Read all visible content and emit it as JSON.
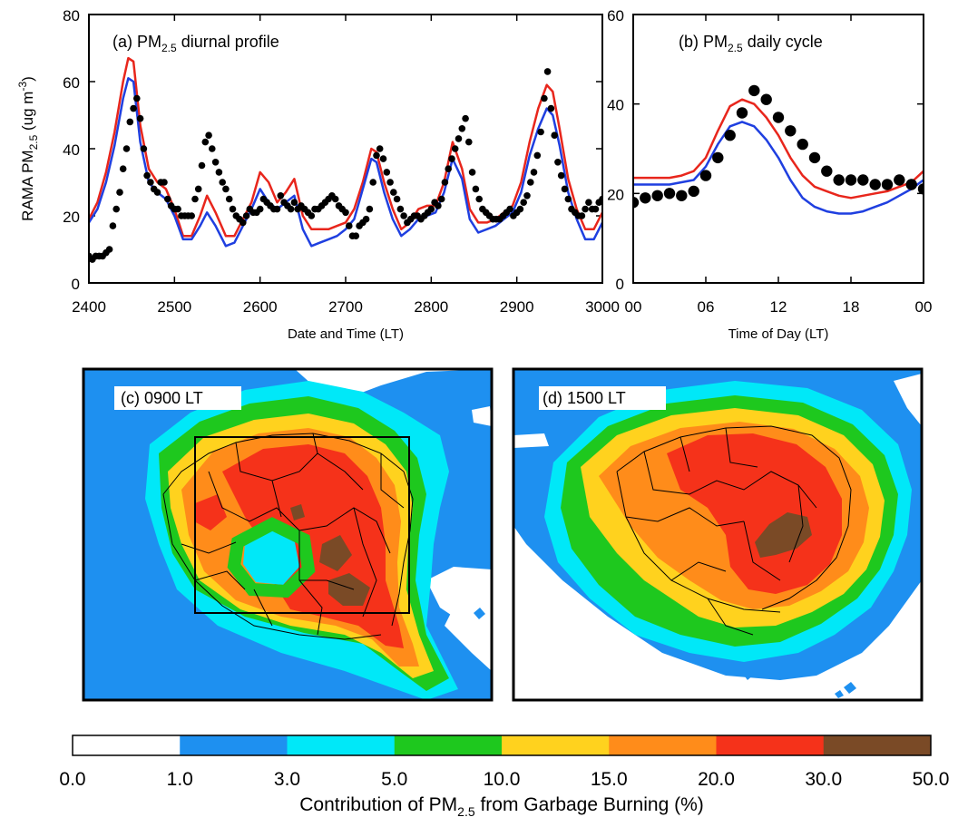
{
  "colors": {
    "obs": "#000000",
    "model_red": "#e8261c",
    "model_blue": "#1f3fe0",
    "scale": [
      "#ffffff",
      "#1e90f0",
      "#00e8f8",
      "#1ec81e",
      "#ffd21e",
      "#ff8c1a",
      "#f5321a",
      "#7a4a26"
    ]
  },
  "chart_data": [
    {
      "type": "line",
      "panel": "a",
      "title_main": "(a) PM",
      "title_sub": "2.5",
      "title_rest": " diurnal profile",
      "ylabel_main": "RAMA PM",
      "ylabel_sub": "2.5",
      "ylabel_unit": " (ug m",
      "ylabel_exp": "-3",
      "ylabel_close": ")",
      "xlabel": "Date and Time (LT)",
      "xlim": [
        2400,
        3000
      ],
      "ylim": [
        0,
        80
      ],
      "xticks": [
        "2400",
        "2500",
        "2600",
        "2700",
        "2800",
        "2900",
        "3000"
      ],
      "yticks": [
        "0",
        "20",
        "40",
        "60",
        "80"
      ],
      "series": [
        {
          "style": "line",
          "color": "red",
          "x": [
            2400,
            2410,
            2420,
            2430,
            2440,
            2446,
            2452,
            2460,
            2470,
            2480,
            2490,
            2500,
            2510,
            2520,
            2530,
            2538,
            2548,
            2560,
            2570,
            2580,
            2590,
            2600,
            2610,
            2620,
            2630,
            2640,
            2650,
            2660,
            2670,
            2680,
            2690,
            2700,
            2710,
            2720,
            2730,
            2736,
            2745,
            2755,
            2765,
            2775,
            2785,
            2795,
            2805,
            2815,
            2825,
            2836,
            2845,
            2855,
            2865,
            2875,
            2885,
            2895,
            2905,
            2915,
            2925,
            2935,
            2942,
            2950,
            2960,
            2970,
            2980,
            2990,
            3000
          ],
          "y": [
            19,
            24,
            33,
            45,
            60,
            67,
            66,
            47,
            34,
            30,
            28,
            22,
            14,
            14,
            20,
            26,
            21,
            14,
            14,
            19,
            24,
            33,
            30,
            24,
            27,
            31,
            20,
            16,
            16,
            16,
            17,
            18,
            22,
            30,
            40,
            39,
            30,
            22,
            16,
            18,
            22,
            23,
            23,
            30,
            42,
            34,
            22,
            18,
            18,
            19,
            21,
            23,
            30,
            42,
            52,
            59,
            57,
            46,
            31,
            22,
            16,
            16,
            21
          ]
        },
        {
          "style": "line",
          "color": "blue",
          "x": [
            2400,
            2410,
            2420,
            2430,
            2440,
            2446,
            2452,
            2460,
            2470,
            2480,
            2490,
            2500,
            2510,
            2520,
            2530,
            2538,
            2548,
            2560,
            2570,
            2580,
            2590,
            2600,
            2610,
            2620,
            2630,
            2640,
            2650,
            2660,
            2670,
            2680,
            2690,
            2700,
            2710,
            2720,
            2730,
            2736,
            2745,
            2755,
            2765,
            2775,
            2785,
            2795,
            2805,
            2815,
            2825,
            2836,
            2845,
            2855,
            2865,
            2875,
            2885,
            2895,
            2905,
            2915,
            2925,
            2935,
            2942,
            2950,
            2960,
            2970,
            2980,
            2990,
            3000
          ],
          "y": [
            18,
            22,
            30,
            41,
            55,
            61,
            60,
            42,
            30,
            27,
            25,
            20,
            13,
            13,
            17,
            21,
            17,
            11,
            12,
            17,
            22,
            28,
            24,
            22,
            24,
            26,
            16,
            11,
            12,
            13,
            14,
            16,
            19,
            28,
            37,
            36,
            27,
            19,
            14,
            16,
            19,
            20,
            21,
            27,
            37,
            31,
            19,
            15,
            16,
            17,
            19,
            21,
            27,
            38,
            46,
            52,
            50,
            41,
            27,
            19,
            13,
            13,
            18
          ]
        },
        {
          "style": "points",
          "color": "obs",
          "x": [
            2400,
            2404,
            2408,
            2412,
            2416,
            2420,
            2424,
            2428,
            2432,
            2436,
            2440,
            2444,
            2448,
            2452,
            2456,
            2460,
            2464,
            2468,
            2472,
            2476,
            2480,
            2484,
            2488,
            2492,
            2496,
            2500,
            2504,
            2508,
            2512,
            2516,
            2520,
            2524,
            2528,
            2532,
            2536,
            2540,
            2544,
            2548,
            2552,
            2556,
            2560,
            2564,
            2568,
            2572,
            2576,
            2580,
            2584,
            2588,
            2592,
            2596,
            2600,
            2604,
            2608,
            2612,
            2616,
            2620,
            2624,
            2628,
            2632,
            2636,
            2640,
            2644,
            2648,
            2652,
            2656,
            2660,
            2664,
            2668,
            2672,
            2676,
            2680,
            2684,
            2688,
            2692,
            2696,
            2700,
            2704,
            2708,
            2712,
            2716,
            2720,
            2724,
            2728,
            2732,
            2736,
            2740,
            2744,
            2748,
            2752,
            2756,
            2760,
            2764,
            2768,
            2772,
            2776,
            2780,
            2784,
            2788,
            2792,
            2796,
            2800,
            2804,
            2808,
            2812,
            2816,
            2820,
            2824,
            2828,
            2832,
            2836,
            2840,
            2844,
            2848,
            2852,
            2856,
            2860,
            2864,
            2868,
            2872,
            2876,
            2880,
            2884,
            2888,
            2892,
            2896,
            2900,
            2904,
            2908,
            2912,
            2916,
            2920,
            2924,
            2928,
            2932,
            2936,
            2940,
            2944,
            2948,
            2952,
            2956,
            2960,
            2964,
            2968,
            2972,
            2976,
            2980,
            2984,
            2988,
            2992,
            2996,
            3000
          ],
          "y": [
            8,
            7,
            8,
            8,
            8,
            9,
            10,
            17,
            22,
            27,
            34,
            40,
            48,
            52,
            55,
            49,
            40,
            32,
            30,
            28,
            27,
            30,
            30,
            25,
            23,
            22,
            22,
            20,
            20,
            20,
            20,
            25,
            28,
            35,
            42,
            44,
            40,
            36,
            33,
            30,
            28,
            25,
            22,
            20,
            19,
            18,
            20,
            22,
            21,
            21,
            22,
            25,
            24,
            23,
            22,
            22,
            26,
            24,
            23,
            22,
            24,
            22,
            23,
            22,
            21,
            20,
            22,
            22,
            23,
            24,
            25,
            26,
            25,
            23,
            22,
            21,
            17,
            14,
            14,
            17,
            18,
            19,
            22,
            30,
            38,
            40,
            37,
            33,
            30,
            27,
            25,
            22,
            20,
            18,
            19,
            20,
            20,
            19,
            20,
            21,
            22,
            24,
            23,
            25,
            30,
            34,
            37,
            40,
            43,
            46,
            49,
            42,
            33,
            28,
            25,
            22,
            21,
            20,
            19,
            19,
            19,
            20,
            21,
            22,
            20,
            21,
            22,
            24,
            26,
            30,
            33,
            38,
            45,
            55,
            63,
            52,
            44,
            36,
            32,
            28,
            25,
            22,
            21,
            20,
            20,
            22,
            24,
            22,
            22,
            24,
            25
          ]
        }
      ]
    },
    {
      "type": "line",
      "panel": "b",
      "title_main": "(b) PM",
      "title_sub": "2.5",
      "title_rest": " daily cycle",
      "xlabel": "Time of Day (LT)",
      "xlim": [
        0,
        24
      ],
      "ylim": [
        0,
        60
      ],
      "xticks": [
        "00",
        "06",
        "12",
        "18",
        "00"
      ],
      "yticks": [
        "0",
        "20",
        "40",
        "60"
      ],
      "series": [
        {
          "style": "line",
          "color": "red",
          "x": [
            0,
            1,
            2,
            3,
            4,
            5,
            6,
            7,
            8,
            9,
            10,
            11,
            12,
            13,
            14,
            15,
            16,
            17,
            18,
            19,
            20,
            21,
            22,
            23,
            24
          ],
          "y": [
            23.5,
            23.5,
            23.5,
            23.5,
            24,
            25,
            28,
            34,
            39.5,
            41,
            40,
            37,
            33,
            28,
            24,
            21.5,
            20.5,
            19.5,
            19,
            19.5,
            20,
            20.5,
            21.5,
            22.5,
            25
          ]
        },
        {
          "style": "line",
          "color": "blue",
          "x": [
            0,
            1,
            2,
            3,
            4,
            5,
            6,
            7,
            8,
            9,
            10,
            11,
            12,
            13,
            14,
            15,
            16,
            17,
            18,
            19,
            20,
            21,
            22,
            23,
            24
          ],
          "y": [
            22,
            22,
            22,
            22,
            22.5,
            23,
            26,
            31,
            35,
            36,
            35,
            32,
            28,
            23,
            19,
            17,
            16,
            15.5,
            15.5,
            16,
            17,
            18,
            19.5,
            21,
            23
          ]
        },
        {
          "style": "points",
          "color": "obs",
          "x": [
            0,
            1,
            2,
            3,
            4,
            5,
            6,
            7,
            8,
            9,
            10,
            11,
            12,
            13,
            14,
            15,
            16,
            17,
            18,
            19,
            20,
            21,
            22,
            23,
            24
          ],
          "y": [
            18,
            19,
            19.5,
            20,
            19.5,
            20.5,
            24,
            28,
            33,
            38,
            43,
            41,
            37,
            34,
            31,
            28,
            25,
            23,
            23,
            23,
            22,
            22,
            23,
            22,
            21
          ]
        }
      ]
    }
  ],
  "maps": [
    {
      "label": "(c) 0900 LT"
    },
    {
      "label": "(d) 1500 LT"
    }
  ],
  "colorbar": {
    "ticks": [
      "0.0",
      "1.0",
      "3.0",
      "5.0",
      "10.0",
      "15.0",
      "20.0",
      "30.0",
      "50.0"
    ],
    "title_main": "Contribution of PM",
    "title_sub": "2.5",
    "title_rest": " from Garbage Burning (%)"
  }
}
